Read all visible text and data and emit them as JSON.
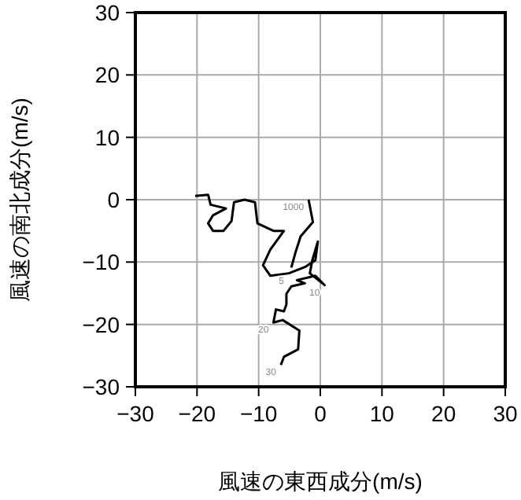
{
  "chart_data": {
    "type": "line",
    "xlabel": "風速の東西成分(m/s)",
    "ylabel": "風速の南北成分(m/s)",
    "xlim": [
      -30,
      30
    ],
    "ylim": [
      -30,
      30
    ],
    "xticks": [
      -30,
      -20,
      -10,
      0,
      10,
      20,
      30
    ],
    "yticks": [
      -30,
      -20,
      -10,
      0,
      10,
      20,
      30
    ],
    "grid": true,
    "series": [
      {
        "color": "#000000",
        "x": [
          -1.9,
          -1.2,
          -3.2,
          -4.1,
          -4.7
        ],
        "values": [
          0,
          -3.6,
          -5.9,
          -8.7,
          -10.9
        ]
      },
      {
        "color": "#000000",
        "x": [
          -20.3,
          -18.2,
          -17.8,
          -15.3,
          -17.4,
          -18.2,
          -17.4,
          -15.7,
          -14.4,
          -14.0,
          -12.3,
          -10.6,
          -10.2,
          -7.6,
          -5.9,
          -8.1,
          -9.3,
          -8.1,
          -5.1,
          -2.5,
          -0.8,
          -0.4,
          -1.3,
          -1.7,
          0.7,
          -0.8,
          -3.8,
          -2.5,
          -4.7,
          -5.5,
          -5.5,
          -5.9,
          -7.2,
          -7.6,
          -6.1,
          -3.4,
          -3.6,
          -5.9,
          -6.4
        ],
        "values": [
          0.6,
          0.8,
          -0.8,
          -1.4,
          -2.5,
          -3.8,
          -5.0,
          -5.0,
          -3.4,
          -0.4,
          0,
          -0.4,
          -3.8,
          -5.0,
          -5.0,
          -8.0,
          -10.5,
          -12.2,
          -11.8,
          -10.8,
          -9.7,
          -6.7,
          -9.7,
          -11.8,
          -13.7,
          -12.2,
          -12.9,
          -13.4,
          -13.9,
          -15.1,
          -16.8,
          -17.9,
          -17.6,
          -19.7,
          -19.3,
          -21.0,
          -24.0,
          -25.2,
          -26.5
        ]
      }
    ],
    "annotations": [
      {
        "text": "1000",
        "x": -1.9,
        "y": 0
      },
      {
        "text": "5",
        "x": -5.1,
        "y": -11.8
      },
      {
        "text": "10",
        "x": 0.7,
        "y": -13.7
      },
      {
        "text": "20",
        "x": -7.6,
        "y": -19.7
      },
      {
        "text": "30",
        "x": -6.4,
        "y": -26.5
      }
    ]
  }
}
